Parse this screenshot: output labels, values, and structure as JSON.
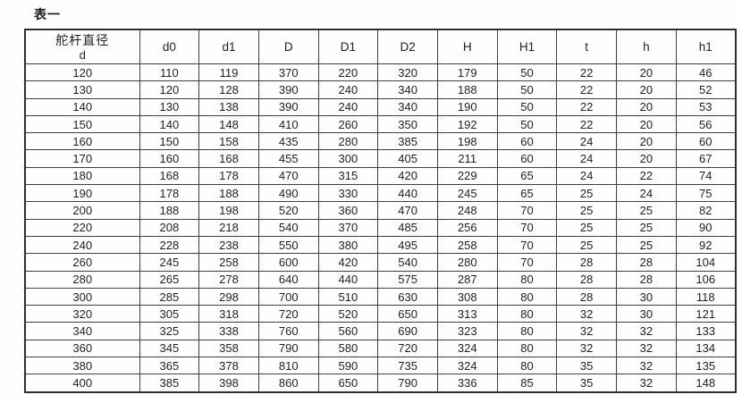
{
  "title": "表一",
  "table": {
    "stub_header": {
      "line1": "舵杆直径",
      "line2": "d"
    },
    "columns": [
      "d0",
      "d1",
      "D",
      "D1",
      "D2",
      "H",
      "H1",
      "t",
      "h",
      "h1"
    ],
    "rows": [
      [
        "120",
        "110",
        "119",
        "370",
        "220",
        "320",
        "179",
        "50",
        "22",
        "20",
        "46"
      ],
      [
        "130",
        "120",
        "128",
        "390",
        "240",
        "340",
        "188",
        "50",
        "22",
        "20",
        "52"
      ],
      [
        "140",
        "130",
        "138",
        "390",
        "240",
        "340",
        "190",
        "50",
        "22",
        "20",
        "53"
      ],
      [
        "150",
        "140",
        "148",
        "410",
        "260",
        "350",
        "192",
        "50",
        "22",
        "20",
        "56"
      ],
      [
        "160",
        "150",
        "158",
        "435",
        "280",
        "385",
        "198",
        "60",
        "24",
        "20",
        "60"
      ],
      [
        "170",
        "160",
        "168",
        "455",
        "300",
        "405",
        "211",
        "60",
        "24",
        "20",
        "67"
      ],
      [
        "180",
        "168",
        "178",
        "470",
        "315",
        "420",
        "229",
        "65",
        "24",
        "22",
        "74"
      ],
      [
        "190",
        "178",
        "188",
        "490",
        "330",
        "440",
        "245",
        "65",
        "25",
        "24",
        "75"
      ],
      [
        "200",
        "188",
        "198",
        "520",
        "360",
        "470",
        "248",
        "70",
        "25",
        "25",
        "82"
      ],
      [
        "220",
        "208",
        "218",
        "540",
        "370",
        "485",
        "256",
        "70",
        "25",
        "25",
        "90"
      ],
      [
        "240",
        "228",
        "238",
        "550",
        "380",
        "495",
        "258",
        "70",
        "25",
        "25",
        "92"
      ],
      [
        "260",
        "245",
        "258",
        "600",
        "420",
        "540",
        "280",
        "70",
        "28",
        "28",
        "104"
      ],
      [
        "280",
        "265",
        "278",
        "640",
        "440",
        "575",
        "287",
        "80",
        "28",
        "28",
        "106"
      ],
      [
        "300",
        "285",
        "298",
        "700",
        "510",
        "630",
        "308",
        "80",
        "28",
        "30",
        "118"
      ],
      [
        "320",
        "305",
        "318",
        "720",
        "520",
        "650",
        "313",
        "80",
        "32",
        "30",
        "121"
      ],
      [
        "340",
        "325",
        "338",
        "760",
        "560",
        "690",
        "323",
        "80",
        "32",
        "32",
        "133"
      ],
      [
        "360",
        "345",
        "358",
        "790",
        "580",
        "720",
        "324",
        "80",
        "32",
        "32",
        "134"
      ],
      [
        "380",
        "365",
        "378",
        "810",
        "590",
        "735",
        "324",
        "80",
        "35",
        "32",
        "135"
      ],
      [
        "400",
        "385",
        "398",
        "860",
        "650",
        "790",
        "336",
        "85",
        "35",
        "32",
        "148"
      ]
    ]
  }
}
